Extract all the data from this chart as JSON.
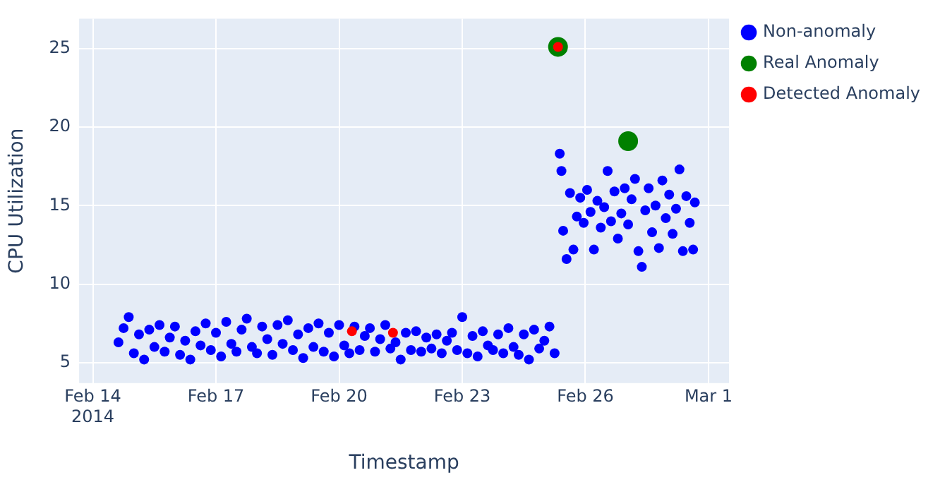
{
  "chart_data": {
    "type": "scatter",
    "xlabel": "Timestamp",
    "ylabel": "CPU Utilization",
    "xlim": [
      "2014-02-13T16:00",
      "2014-03-01T12:00"
    ],
    "xticks": [
      {
        "value": "2014-02-14",
        "label": "Feb 14\n2014"
      },
      {
        "value": "2014-02-17",
        "label": "Feb 17"
      },
      {
        "value": "2014-02-20",
        "label": "Feb 20"
      },
      {
        "value": "2014-02-23",
        "label": "Feb 23"
      },
      {
        "value": "2014-02-26",
        "label": "Feb 26"
      },
      {
        "value": "2014-03-01",
        "label": "Mar 1"
      }
    ],
    "ylim": [
      3.7,
      26.9
    ],
    "yticks": [
      5,
      10,
      15,
      20,
      25
    ],
    "grid": true,
    "legend": "top right",
    "marker": "circle",
    "series": [
      {
        "name": "Non-anomaly",
        "color": "#0000ff",
        "x": [
          "2014-02-14T15:00",
          "2014-02-14T18:00",
          "2014-02-14T21:00",
          "2014-02-15T00:00",
          "2014-02-15T03:00",
          "2014-02-15T06:00",
          "2014-02-15T09:00",
          "2014-02-15T12:00",
          "2014-02-15T15:00",
          "2014-02-15T18:00",
          "2014-02-15T21:00",
          "2014-02-16T00:00",
          "2014-02-16T03:00",
          "2014-02-16T06:00",
          "2014-02-16T09:00",
          "2014-02-16T12:00",
          "2014-02-16T15:00",
          "2014-02-16T18:00",
          "2014-02-16T21:00",
          "2014-02-17T00:00",
          "2014-02-17T03:00",
          "2014-02-17T06:00",
          "2014-02-17T09:00",
          "2014-02-17T12:00",
          "2014-02-17T15:00",
          "2014-02-17T18:00",
          "2014-02-17T21:00",
          "2014-02-18T00:00",
          "2014-02-18T03:00",
          "2014-02-18T06:00",
          "2014-02-18T09:00",
          "2014-02-18T12:00",
          "2014-02-18T15:00",
          "2014-02-18T18:00",
          "2014-02-18T21:00",
          "2014-02-19T00:00",
          "2014-02-19T03:00",
          "2014-02-19T06:00",
          "2014-02-19T09:00",
          "2014-02-19T12:00",
          "2014-02-19T15:00",
          "2014-02-19T18:00",
          "2014-02-19T21:00",
          "2014-02-20T00:00",
          "2014-02-20T03:00",
          "2014-02-20T06:00",
          "2014-02-20T09:00",
          "2014-02-20T12:00",
          "2014-02-20T15:00",
          "2014-02-20T18:00",
          "2014-02-20T21:00",
          "2014-02-21T00:00",
          "2014-02-21T03:00",
          "2014-02-21T06:00",
          "2014-02-21T09:00",
          "2014-02-21T12:00",
          "2014-02-21T15:00",
          "2014-02-21T18:00",
          "2014-02-21T21:00",
          "2014-02-22T00:00",
          "2014-02-22T03:00",
          "2014-02-22T06:00",
          "2014-02-22T09:00",
          "2014-02-22T12:00",
          "2014-02-22T15:00",
          "2014-02-22T18:00",
          "2014-02-22T21:00",
          "2014-02-23T00:00",
          "2014-02-23T03:00",
          "2014-02-23T06:00",
          "2014-02-23T09:00",
          "2014-02-23T12:00",
          "2014-02-23T15:00",
          "2014-02-23T18:00",
          "2014-02-23T21:00",
          "2014-02-24T00:00",
          "2014-02-24T03:00",
          "2014-02-24T06:00",
          "2014-02-24T09:00",
          "2014-02-24T12:00",
          "2014-02-24T15:00",
          "2014-02-24T18:00",
          "2014-02-24T21:00",
          "2014-02-25T00:00",
          "2014-02-25T03:00",
          "2014-02-25T06:00",
          "2014-02-25T09:00",
          "2014-02-25T10:00",
          "2014-02-25T11:00",
          "2014-02-25T13:00",
          "2014-02-25T15:00",
          "2014-02-25T17:00",
          "2014-02-25T19:00",
          "2014-02-25T21:00",
          "2014-02-25T23:00",
          "2014-02-26T01:00",
          "2014-02-26T03:00",
          "2014-02-26T05:00",
          "2014-02-26T07:00",
          "2014-02-26T09:00",
          "2014-02-26T11:00",
          "2014-02-26T13:00",
          "2014-02-26T15:00",
          "2014-02-26T17:00",
          "2014-02-26T19:00",
          "2014-02-26T21:00",
          "2014-02-26T23:00",
          "2014-02-27T01:00",
          "2014-02-27T03:00",
          "2014-02-27T05:00",
          "2014-02-27T07:00",
          "2014-02-27T09:00",
          "2014-02-27T11:00",
          "2014-02-27T13:00",
          "2014-02-27T15:00",
          "2014-02-27T17:00",
          "2014-02-27T19:00",
          "2014-02-27T21:00",
          "2014-02-27T23:00",
          "2014-02-28T01:00",
          "2014-02-28T03:00",
          "2014-02-28T05:00",
          "2014-02-28T07:00",
          "2014-02-28T09:00",
          "2014-02-28T11:00",
          "2014-02-28T13:00",
          "2014-02-28T15:00",
          "2014-02-28T16:00"
        ],
        "values": [
          6.3,
          7.2,
          7.9,
          5.6,
          6.8,
          5.2,
          7.1,
          6.0,
          7.4,
          5.7,
          6.6,
          7.3,
          5.5,
          6.4,
          5.2,
          7.0,
          6.1,
          7.5,
          5.8,
          6.9,
          5.4,
          7.6,
          6.2,
          5.7,
          7.1,
          7.8,
          6.0,
          5.6,
          7.3,
          6.5,
          5.5,
          7.4,
          6.2,
          7.7,
          5.8,
          6.8,
          5.3,
          7.2,
          6.0,
          7.5,
          5.7,
          6.9,
          5.4,
          7.4,
          6.1,
          5.6,
          7.3,
          5.8,
          6.7,
          7.2,
          5.7,
          6.5,
          7.4,
          5.9,
          6.3,
          5.2,
          6.9,
          5.8,
          7.0,
          5.7,
          6.6,
          5.9,
          6.8,
          5.6,
          6.4,
          6.9,
          5.8,
          7.9,
          5.6,
          6.7,
          5.4,
          7.0,
          6.1,
          5.8,
          6.8,
          5.6,
          7.2,
          6.0,
          5.5,
          6.8,
          5.2,
          7.1,
          5.9,
          6.4,
          7.3,
          5.6,
          18.3,
          17.2,
          13.4,
          11.6,
          15.8,
          12.2,
          14.3,
          15.5,
          13.9,
          16.0,
          14.6,
          12.2,
          15.3,
          13.6,
          14.9,
          17.2,
          14.0,
          15.9,
          12.9,
          14.5,
          16.1,
          13.8,
          15.4,
          16.7,
          12.1,
          11.1,
          14.7,
          16.1,
          13.3,
          15.0,
          12.3,
          16.6,
          14.2,
          15.7,
          13.2,
          14.8,
          17.3,
          12.1,
          15.6,
          13.9,
          12.2,
          15.2
        ]
      },
      {
        "name": "Real Anomaly",
        "color": "#008000",
        "x": [
          "2014-02-25T08:00",
          "2014-02-27T01:00"
        ],
        "values": [
          25.1,
          19.1
        ]
      },
      {
        "name": "Detected Anomaly",
        "color": "#ff0000",
        "x": [
          "2014-02-20T07:30",
          "2014-02-21T07:30",
          "2014-02-25T08:00"
        ],
        "values": [
          7.0,
          6.9,
          25.1
        ]
      }
    ]
  }
}
